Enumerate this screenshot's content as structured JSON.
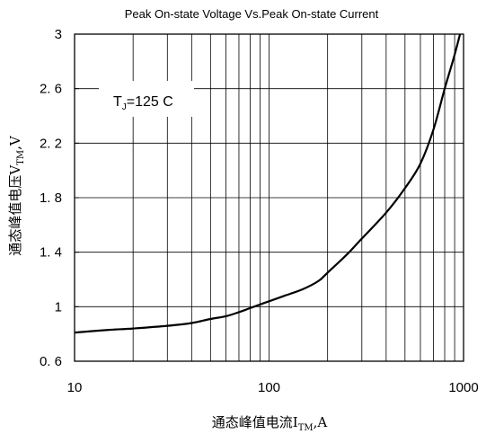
{
  "chart_data": {
    "type": "line",
    "title": "Peak On-state Voltage Vs.Peak On-state Current",
    "xlabel": {
      "main": "通态峰值电流I",
      "sub": "TM",
      "suffix": ",A"
    },
    "ylabel": {
      "main": "通态峰值电压V",
      "sub": "TM",
      "suffix": ",V"
    },
    "xscale": "log",
    "xlim": [
      10,
      1000
    ],
    "ylim": [
      0.6,
      3
    ],
    "xticks": [
      10,
      100,
      1000
    ],
    "xtick_labels": [
      "10",
      "100",
      "1000"
    ],
    "yticks": [
      0.6,
      1,
      1.4,
      1.8,
      2.2,
      2.6,
      3
    ],
    "ytick_labels": [
      "0. 6",
      "1",
      "1. 4",
      "1. 8",
      "2. 2",
      "2. 6",
      "3"
    ],
    "grid": true,
    "annotation": {
      "prefix": "T",
      "sub": "J",
      "suffix": "=125  C"
    },
    "series": [
      {
        "x": [
          10,
          15,
          20,
          30,
          40,
          50,
          60,
          70,
          80,
          100,
          120,
          150,
          180,
          200,
          250,
          300,
          400,
          500,
          600,
          700,
          800,
          900,
          1000
        ],
        "y": [
          0.81,
          0.83,
          0.84,
          0.86,
          0.88,
          0.91,
          0.93,
          0.96,
          0.99,
          1.04,
          1.08,
          1.13,
          1.19,
          1.25,
          1.38,
          1.5,
          1.69,
          1.87,
          2.05,
          2.3,
          2.6,
          2.85,
          3.1
        ]
      }
    ]
  }
}
